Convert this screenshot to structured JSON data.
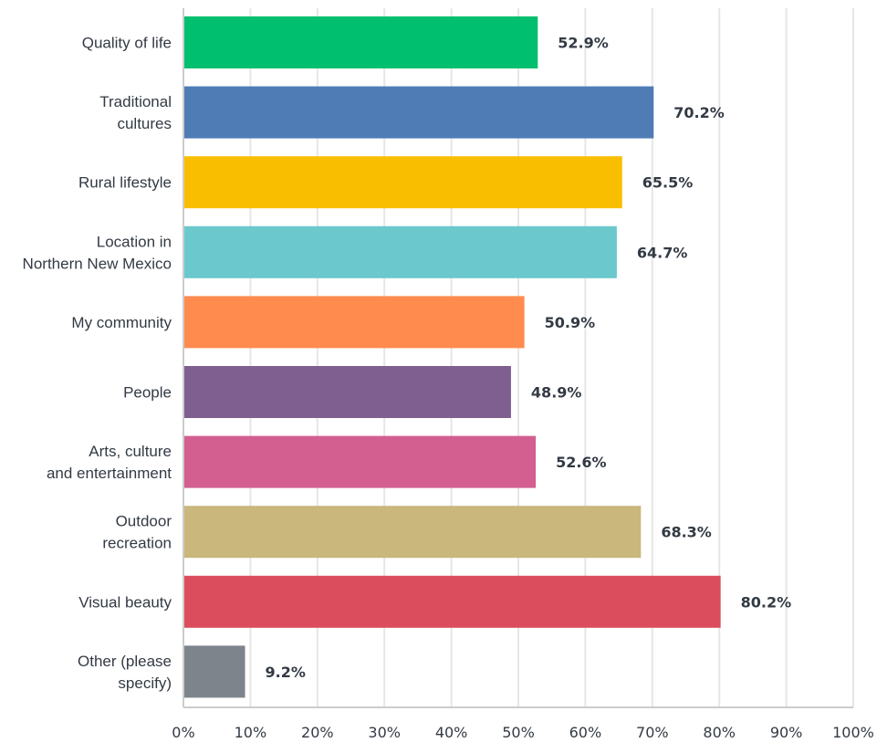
{
  "chart_data": {
    "type": "bar",
    "orientation": "horizontal",
    "title": "",
    "xlabel": "",
    "ylabel": "",
    "xlim": [
      0,
      100
    ],
    "grid": true,
    "x_ticks": [
      "0%",
      "10%",
      "20%",
      "30%",
      "40%",
      "50%",
      "60%",
      "70%",
      "80%",
      "90%",
      "100%"
    ],
    "categories": [
      [
        "Quality of life"
      ],
      [
        "Traditional",
        "cultures"
      ],
      [
        "Rural lifestyle"
      ],
      [
        "Location in",
        "Northern New Mexico"
      ],
      [
        "My community"
      ],
      [
        "People"
      ],
      [
        "Arts, culture",
        "and entertainment"
      ],
      [
        "Outdoor",
        "recreation"
      ],
      [
        "Visual beauty"
      ],
      [
        "Other (please",
        "specify)"
      ]
    ],
    "values": [
      52.9,
      70.2,
      65.5,
      64.7,
      50.9,
      48.9,
      52.6,
      68.3,
      80.2,
      9.2
    ],
    "value_labels": [
      "52.9%",
      "70.2%",
      "65.5%",
      "64.7%",
      "50.9%",
      "48.9%",
      "52.6%",
      "68.3%",
      "80.2%",
      "9.2%"
    ],
    "colors": [
      "#00bf6f",
      "#507cb6",
      "#f9be00",
      "#6bc8cd",
      "#ff8b4f",
      "#7f5f90",
      "#d25f90",
      "#c9b77c",
      "#db4d5c",
      "#7d848b"
    ]
  }
}
